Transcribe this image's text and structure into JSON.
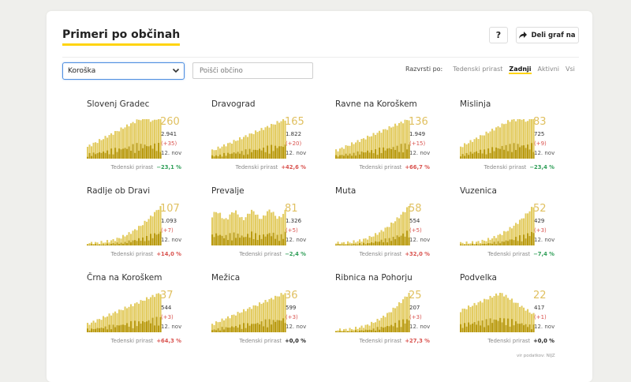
{
  "header": {
    "title": "Primeri po občinah",
    "help_label": "?",
    "share_label": "Deli graf na"
  },
  "filters": {
    "region": "Koroška",
    "search_placeholder": "Poišči občino",
    "sort_label": "Razvrsti po:",
    "sort_options": [
      "Tedenski prirast",
      "Zadnji",
      "Aktivni",
      "Vsi"
    ],
    "sort_active": "Zadnji"
  },
  "colors": {
    "bar_light": "#e3cc62",
    "bar_dark": "#b99a0e",
    "number": "#e0c060",
    "positive": "#d9534f",
    "negative": "#2e9e57",
    "neutral": "#222222"
  },
  "growth_label": "Tedenski prirast",
  "municipalities": [
    {
      "name": "Slovenj Gradec",
      "active": "260",
      "total": "2.941",
      "delta": "(+35)",
      "date": "12. nov",
      "growth": "−23,1 %",
      "trend": "down",
      "shape": "plateau"
    },
    {
      "name": "Dravograd",
      "active": "165",
      "total": "1.822",
      "delta": "(+20)",
      "date": "12. nov",
      "growth": "+42,6 %",
      "trend": "up",
      "shape": "ramp"
    },
    {
      "name": "Ravne na Koroškem",
      "active": "136",
      "total": "1.949",
      "delta": "(+15)",
      "date": "12. nov",
      "growth": "+66,7 %",
      "trend": "up",
      "shape": "ramp"
    },
    {
      "name": "Mislinja",
      "active": "83",
      "total": "725",
      "delta": "(+9)",
      "date": "12. nov",
      "growth": "−23,4 %",
      "trend": "down",
      "shape": "plateau"
    },
    {
      "name": "Radlje ob Dravi",
      "active": "107",
      "total": "1.093",
      "delta": "(+7)",
      "date": "12. nov",
      "growth": "+14,0 %",
      "trend": "up",
      "shape": "exp"
    },
    {
      "name": "Prevalje",
      "active": "81",
      "total": "1.326",
      "delta": "(+5)",
      "date": "12. nov",
      "growth": "−2,4 %",
      "trend": "down",
      "shape": "flat"
    },
    {
      "name": "Muta",
      "active": "58",
      "total": "554",
      "delta": "(+5)",
      "date": "12. nov",
      "growth": "+32,0 %",
      "trend": "up",
      "shape": "exp"
    },
    {
      "name": "Vuzenica",
      "active": "52",
      "total": "429",
      "delta": "(+3)",
      "date": "12. nov",
      "growth": "−7,4 %",
      "trend": "down",
      "shape": "exp"
    },
    {
      "name": "Črna na Koroškem",
      "active": "37",
      "total": "544",
      "delta": "(+3)",
      "date": "12. nov",
      "growth": "+64,3 %",
      "trend": "up",
      "shape": "ramp"
    },
    {
      "name": "Mežica",
      "active": "36",
      "total": "599",
      "delta": "(+3)",
      "date": "12. nov",
      "growth": "+0,0 %",
      "trend": "zero",
      "shape": "ramp"
    },
    {
      "name": "Ribnica na Pohorju",
      "active": "25",
      "total": "207",
      "delta": "(+3)",
      "date": "12. nov",
      "growth": "+27,3 %",
      "trend": "up",
      "shape": "exp"
    },
    {
      "name": "Podvelka",
      "active": "22",
      "total": "417",
      "delta": "(+1)",
      "date": "12. nov",
      "growth": "+0,0 %",
      "trend": "zero",
      "shape": "hump"
    }
  ],
  "footer": "vir podatkov: NIJZ"
}
